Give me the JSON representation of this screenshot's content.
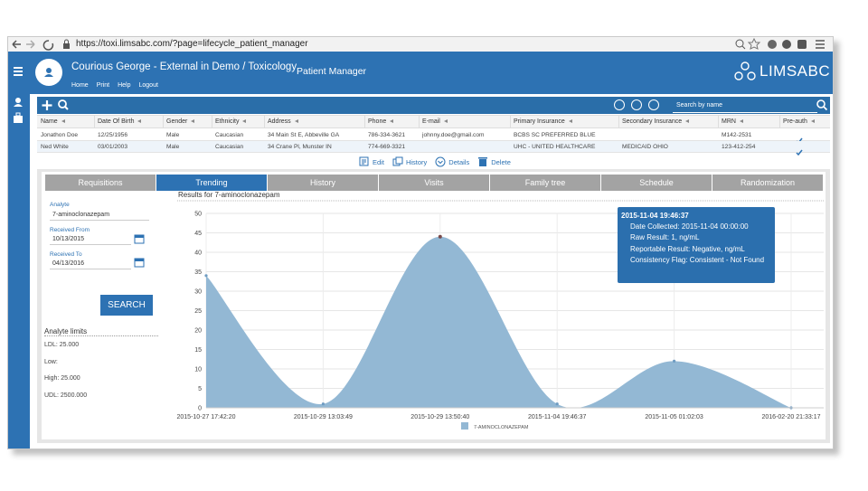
{
  "browser": {
    "url": "https://toxi.limsabc.com/?page=lifecycle_patient_manager"
  },
  "header": {
    "title": "Courious George - External in Demo / Toxicology",
    "nav": [
      "Home",
      "Print",
      "Help",
      "Logout"
    ],
    "page_title": "Patient Manager",
    "logo": "LIMSABC"
  },
  "toolbar": {
    "search_placeholder": "Search by name"
  },
  "table": {
    "columns": [
      "Name",
      "Date Of Birth",
      "Gender",
      "Ethnicity",
      "Address",
      "Phone",
      "E-mail",
      "Primary Insurance",
      "Secondary Insurance",
      "MRN",
      "Pre-auth"
    ],
    "rows": [
      [
        "Jonathon Doe",
        "12/25/1956",
        "Male",
        "Caucasian",
        "34 Main St E, Abbeville GA",
        "786-334-3621",
        "johnny.doe@gmail.com",
        "BCBS SC PREFERRED BLUE",
        null,
        "M142-2531"
      ],
      [
        "Ned White",
        "03/01/2003",
        "Male",
        "Caucasian",
        "34 Crane Pl, Munster IN",
        "774-669-3321",
        null,
        "UHC - UNITED HEALTHCARE",
        "MEDICAID OHIO",
        "123-412-254"
      ]
    ]
  },
  "actions": [
    "Edit",
    "History",
    "Details",
    "Delete"
  ],
  "tabs": [
    "Requisitions",
    "Trending",
    "History",
    "Visits",
    "Family tree",
    "Schedule",
    "Randomization"
  ],
  "active_tab": 1,
  "filters": {
    "analyte_label": "Analyte",
    "analyte": "7-aminoclonazepam",
    "from_label": "Received From",
    "from": "10/13/2015",
    "to_label": "Received To",
    "to": "04/13/2016",
    "button": "SEARCH"
  },
  "limits": {
    "title": "Analyte limits",
    "items": [
      "LDL: 25.000",
      "Low:",
      "High: 25.000",
      "UDL: 2500.000"
    ]
  },
  "chart_data": {
    "type": "area",
    "title": "Results for 7-aminoclonazepam",
    "categories": [
      "2015-10-27 17:42:20",
      "2015-10-29 13:03:49",
      "2015-10-29 13:50:40",
      "2015-11-04 19:46:37",
      "2015-11-05 01:02:03",
      "2016-02-20 21:33:17"
    ],
    "series": [
      {
        "name": "7-AMINOCLONAZEPAM",
        "color": "#93b8d4",
        "values": [
          34,
          1,
          44,
          1,
          12,
          0
        ]
      }
    ],
    "ylim": [
      0,
      50
    ],
    "yticks": [
      0,
      5,
      10,
      15,
      20,
      25,
      30,
      35,
      40,
      45,
      50
    ],
    "grid": true,
    "tooltip": {
      "title": "2015-11-04 19:46:37",
      "lines": [
        "Date Collected: 2015-11-04 00:00:00",
        "Raw Result: 1, ng/mL",
        "Reportable Result: Negative, ng/mL",
        "Consistency Flag: Consistent - Not Found"
      ]
    }
  }
}
